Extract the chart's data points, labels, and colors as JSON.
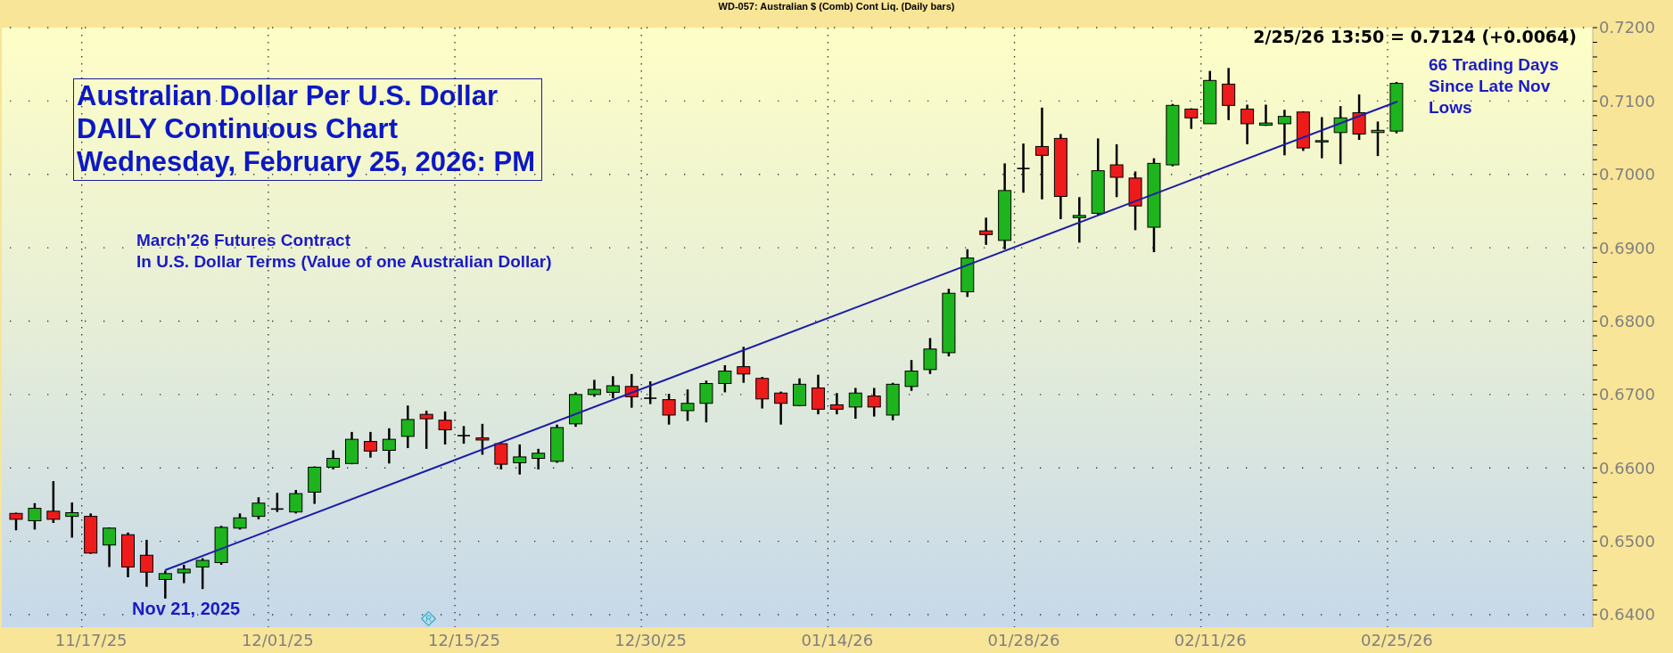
{
  "chart_data": {
    "type": "candlestick",
    "title": "Australian Dollar Per U.S. Dollar\nDAILY Continuous Chart\nWednesday, February 25, 2026: PM",
    "subtitle": "March'26 Futures Contract\nIn U.S. Dollar Terms (Value of one Australian Dollar)",
    "annotations": [
      "WD-057: Australian $ (Comb) Cont Liq. (Daily bars)",
      "2/25/26 13:50 = 0.7124 (+0.0064)",
      "66 Trading Days\nSince Late Nov\nLows",
      "Nov 21, 2025"
    ],
    "categories": [
      null,
      null,
      null,
      null,
      "11/17/25",
      null,
      null,
      null,
      null,
      null,
      null,
      null,
      null,
      null,
      "12/01/25",
      null,
      null,
      null,
      null,
      null,
      null,
      null,
      null,
      null,
      "12/15/25",
      null,
      null,
      null,
      null,
      null,
      null,
      null,
      null,
      null,
      "12/30/25",
      null,
      null,
      null,
      null,
      null,
      null,
      null,
      null,
      null,
      "01/14/26",
      null,
      null,
      null,
      null,
      null,
      null,
      null,
      null,
      null,
      "01/28/26",
      null,
      null,
      null,
      null,
      null,
      null,
      null,
      null,
      null,
      "02/11/26",
      null,
      null,
      null,
      null,
      null,
      null,
      null,
      null,
      null,
      "02/25/26",
      null,
      null,
      null,
      null,
      null,
      null,
      null,
      null,
      null,
      null
    ],
    "series": [
      {
        "ohlc": [
          [
            0.6538,
            0.6539,
            0.6515,
            0.653
          ],
          [
            0.6528,
            0.6552,
            0.6516,
            0.6545
          ],
          [
            0.6541,
            0.6582,
            0.6525,
            0.653
          ],
          [
            0.6534,
            0.6553,
            0.6505,
            0.6539
          ],
          [
            0.6534,
            0.6538,
            0.6483,
            0.6484
          ],
          [
            0.6495,
            0.6519,
            0.6465,
            0.6518
          ],
          [
            0.6509,
            0.6512,
            0.6451,
            0.6465
          ],
          [
            0.6481,
            0.6502,
            0.6438,
            0.6458
          ],
          [
            0.6448,
            0.646,
            0.6422,
            0.6456
          ],
          [
            0.6457,
            0.6468,
            0.6443,
            0.6462
          ],
          [
            0.6465,
            0.6477,
            0.6435,
            0.6474
          ],
          [
            0.6471,
            0.6521,
            0.6468,
            0.6519
          ],
          [
            0.6518,
            0.6538,
            0.6516,
            0.6532
          ],
          [
            0.6534,
            0.656,
            0.653,
            0.6552
          ],
          [
            0.6544,
            0.6566,
            0.654,
            0.6544
          ],
          [
            0.654,
            0.657,
            0.6538,
            0.6565
          ],
          [
            0.6567,
            0.6602,
            0.6551,
            0.6601
          ],
          [
            0.6601,
            0.6624,
            0.6598,
            0.6613
          ],
          [
            0.6606,
            0.6649,
            0.6605,
            0.6639
          ],
          [
            0.6636,
            0.6649,
            0.6614,
            0.6623
          ],
          [
            0.6624,
            0.6654,
            0.6606,
            0.6639
          ],
          [
            0.6643,
            0.6685,
            0.6627,
            0.6666
          ],
          [
            0.6673,
            0.6678,
            0.6626,
            0.6667
          ],
          [
            0.6665,
            0.6677,
            0.6632,
            0.6652
          ],
          [
            0.6644,
            0.6657,
            0.6633,
            0.6644
          ],
          [
            0.6641,
            0.666,
            0.6618,
            0.6638
          ],
          [
            0.6633,
            0.6634,
            0.6598,
            0.6605
          ],
          [
            0.6607,
            0.6632,
            0.6591,
            0.6615
          ],
          [
            0.6613,
            0.6626,
            0.6598,
            0.662
          ],
          [
            0.6609,
            0.6659,
            0.6607,
            0.6655
          ],
          [
            0.666,
            0.6703,
            0.6656,
            0.67
          ],
          [
            0.67,
            0.672,
            0.6697,
            0.6707
          ],
          [
            0.6703,
            0.6725,
            0.6695,
            0.6712
          ],
          [
            0.6711,
            0.6728,
            0.6682,
            0.6697
          ],
          [
            0.6695,
            0.6718,
            0.6687,
            0.6695
          ],
          [
            0.6693,
            0.6701,
            0.6659,
            0.6672
          ],
          [
            0.6678,
            0.6707,
            0.6664,
            0.6688
          ],
          [
            0.6688,
            0.6719,
            0.6662,
            0.6715
          ],
          [
            0.6715,
            0.674,
            0.6703,
            0.6732
          ],
          [
            0.6738,
            0.6765,
            0.6716,
            0.6728
          ],
          [
            0.6722,
            0.6724,
            0.6681,
            0.6694
          ],
          [
            0.6702,
            0.6704,
            0.6659,
            0.6688
          ],
          [
            0.6685,
            0.6722,
            0.6684,
            0.6714
          ],
          [
            0.6709,
            0.6727,
            0.6673,
            0.668
          ],
          [
            0.6686,
            0.6702,
            0.6673,
            0.668
          ],
          [
            0.6683,
            0.6709,
            0.6667,
            0.6702
          ],
          [
            0.6698,
            0.6709,
            0.667,
            0.6683
          ],
          [
            0.6672,
            0.6716,
            0.6665,
            0.6714
          ],
          [
            0.6711,
            0.6747,
            0.6705,
            0.6732
          ],
          [
            0.6734,
            0.6777,
            0.6728,
            0.6762
          ],
          [
            0.6757,
            0.6844,
            0.6752,
            0.6838
          ],
          [
            0.684,
            0.6898,
            0.6833,
            0.6886
          ],
          [
            0.6923,
            0.6941,
            0.6904,
            0.6918
          ],
          [
            0.691,
            0.7015,
            0.6898,
            0.6978
          ],
          [
            0.7008,
            0.7042,
            0.6975,
            0.7008
          ],
          [
            0.7038,
            0.7091,
            0.6966,
            0.7026
          ],
          [
            0.7049,
            0.7055,
            0.6939,
            0.697
          ],
          [
            0.6941,
            0.6969,
            0.6907,
            0.6944
          ],
          [
            0.6947,
            0.7049,
            0.6945,
            0.7005
          ],
          [
            0.7013,
            0.7041,
            0.6969,
            0.6996
          ],
          [
            0.6995,
            0.7004,
            0.6924,
            0.6957
          ],
          [
            0.6928,
            0.7022,
            0.6894,
            0.7015
          ],
          [
            0.7013,
            0.7096,
            0.7011,
            0.7094
          ],
          [
            0.7089,
            0.709,
            0.7062,
            0.7077
          ],
          [
            0.7069,
            0.7141,
            0.7069,
            0.7128
          ],
          [
            0.7123,
            0.7145,
            0.7074,
            0.7094
          ],
          [
            0.7089,
            0.7095,
            0.7041,
            0.7069
          ],
          [
            0.7067,
            0.7095,
            0.7066,
            0.707
          ],
          [
            0.7069,
            0.7088,
            0.7026,
            0.7079
          ],
          [
            0.7085,
            0.7086,
            0.7032,
            0.7036
          ],
          [
            0.7045,
            0.7078,
            0.7022,
            0.7046
          ],
          [
            0.7057,
            0.7093,
            0.7014,
            0.7077
          ],
          [
            0.7084,
            0.7109,
            0.7047,
            0.7055
          ],
          [
            0.7057,
            0.7072,
            0.7025,
            0.706
          ],
          [
            0.7059,
            0.7126,
            0.7056,
            0.7124
          ],
          null,
          null,
          null,
          null,
          null,
          null,
          null,
          null,
          null,
          null
        ],
        "colors": [
          "#ee1b1b",
          "#1db41d",
          "#ee1b1b",
          "#1db41d",
          "#ee1b1b",
          "#1db41d",
          "#ee1b1b",
          "#ee1b1b",
          "#1db41d",
          "#1db41d",
          "#1db41d",
          "#1db41d",
          "#1db41d",
          "#1db41d",
          "#000000",
          "#1db41d",
          "#1db41d",
          "#1db41d",
          "#1db41d",
          "#ee1b1b",
          "#1db41d",
          "#1db41d",
          "#ee1b1b",
          "#ee1b1b",
          "#000000",
          "#ee1b1b",
          "#ee1b1b",
          "#1db41d",
          "#1db41d",
          "#1db41d",
          "#1db41d",
          "#1db41d",
          "#1db41d",
          "#ee1b1b",
          "#000000",
          "#ee1b1b",
          "#1db41d",
          "#1db41d",
          "#1db41d",
          "#ee1b1b",
          "#ee1b1b",
          "#ee1b1b",
          "#1db41d",
          "#ee1b1b",
          "#ee1b1b",
          "#1db41d",
          "#ee1b1b",
          "#1db41d",
          "#1db41d",
          "#1db41d",
          "#1db41d",
          "#1db41d",
          "#ee1b1b",
          "#1db41d",
          "#000000",
          "#ee1b1b",
          "#ee1b1b",
          "#1db41d",
          "#1db41d",
          "#ee1b1b",
          "#ee1b1b",
          "#1db41d",
          "#1db41d",
          "#ee1b1b",
          "#1db41d",
          "#ee1b1b",
          "#ee1b1b",
          "#1db41d",
          "#1db41d",
          "#ee1b1b",
          "#1db41d",
          "#1db41d",
          "#ee1b1b",
          "#1db41d",
          "#1db41d",
          null,
          null,
          null,
          null,
          null,
          null,
          null,
          null,
          null,
          null
        ]
      },
      {
        "type": "line",
        "color": "#1c1ca8",
        "values": [
          null,
          null,
          null,
          null,
          null,
          null,
          null,
          null,
          0.6461,
          null,
          null,
          null,
          null,
          null,
          null,
          null,
          null,
          null,
          null,
          null,
          null,
          null,
          null,
          null,
          null,
          null,
          null,
          null,
          null,
          null,
          null,
          null,
          null,
          null,
          null,
          null,
          null,
          null,
          null,
          null,
          null,
          null,
          null,
          null,
          null,
          null,
          null,
          null,
          null,
          null,
          null,
          null,
          null,
          null,
          null,
          null,
          null,
          null,
          null,
          null,
          null,
          null,
          null,
          null,
          null,
          null,
          null,
          null,
          null,
          null,
          null,
          null,
          null,
          null,
          0.7099,
          null,
          null,
          null,
          null,
          null,
          null,
          null,
          null,
          null,
          null
        ]
      }
    ],
    "ylim": [
      0.6383,
      0.72
    ],
    "yticks": [
      {
        "value": 0.64,
        "label": "0.6400"
      },
      {
        "value": 0.642,
        "label": null
      },
      {
        "value": 0.644,
        "label": null
      },
      {
        "value": 0.646,
        "label": null
      },
      {
        "value": 0.648,
        "label": null
      },
      {
        "value": 0.65,
        "label": "0.6500"
      },
      {
        "value": 0.652,
        "label": null
      },
      {
        "value": 0.654,
        "label": null
      },
      {
        "value": 0.656,
        "label": null
      },
      {
        "value": 0.658,
        "label": null
      },
      {
        "value": 0.66,
        "label": "0.6600"
      },
      {
        "value": 0.662,
        "label": null
      },
      {
        "value": 0.664,
        "label": null
      },
      {
        "value": 0.666,
        "label": null
      },
      {
        "value": 0.668,
        "label": null
      },
      {
        "value": 0.67,
        "label": "0.6700"
      },
      {
        "value": 0.672,
        "label": null
      },
      {
        "value": 0.674,
        "label": null
      },
      {
        "value": 0.676,
        "label": null
      },
      {
        "value": 0.678,
        "label": null
      },
      {
        "value": 0.68,
        "label": "0.6800"
      },
      {
        "value": 0.682,
        "label": null
      },
      {
        "value": 0.684,
        "label": null
      },
      {
        "value": 0.686,
        "label": null
      },
      {
        "value": 0.688,
        "label": null
      },
      {
        "value": 0.69,
        "label": "0.6900"
      },
      {
        "value": 0.692,
        "label": null
      },
      {
        "value": 0.694,
        "label": null
      },
      {
        "value": 0.696,
        "label": null
      },
      {
        "value": 0.698,
        "label": null
      },
      {
        "value": 0.7,
        "label": "0.7000"
      },
      {
        "value": 0.702,
        "label": null
      },
      {
        "value": 0.704,
        "label": null
      },
      {
        "value": 0.706,
        "label": null
      },
      {
        "value": 0.708,
        "label": null
      },
      {
        "value": 0.71,
        "label": "0.7100"
      },
      {
        "value": 0.712,
        "label": null
      },
      {
        "value": 0.714,
        "label": null
      },
      {
        "value": 0.716,
        "label": null
      },
      {
        "value": 0.718,
        "label": null
      },
      {
        "value": 0.72,
        "label": "0.7200"
      }
    ],
    "grid": true
  }
}
